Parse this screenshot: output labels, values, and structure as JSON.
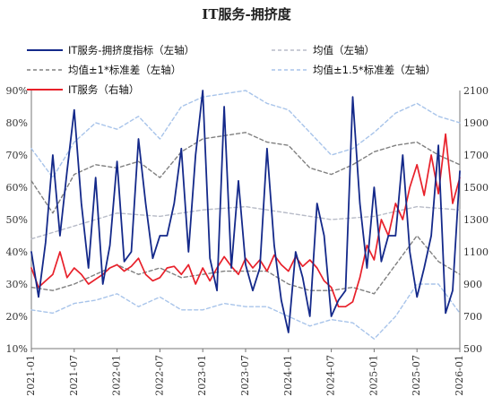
{
  "chart_data": {
    "type": "line",
    "title": "IT服务-拥挤度",
    "x_ticks": [
      "2021-01",
      "2021-07",
      "2022-01",
      "2022-07",
      "2023-01",
      "2023-07",
      "2024-01",
      "2024-07",
      "2025-01",
      "2025-07",
      "2026-01"
    ],
    "left_axis": {
      "ylim": [
        10,
        90
      ],
      "tick_labels": [
        "10%",
        "20%",
        "30%",
        "40%",
        "50%",
        "60%",
        "70%",
        "80%",
        "90%"
      ]
    },
    "right_axis": {
      "ylim": [
        500,
        2100
      ],
      "tick_labels": [
        "500",
        "700",
        "900",
        "1100",
        "1300",
        "1500",
        "1700",
        "1900",
        "2100"
      ]
    },
    "legend": [
      {
        "label": "IT服务-拥挤度指标（左轴）",
        "color": "#14298a",
        "style": "solid"
      },
      {
        "label": "均值（左轴）",
        "color": "#b8bcc8",
        "style": "dashed"
      },
      {
        "label": "均值±1*标准差（左轴）",
        "color": "#808080",
        "style": "dashed"
      },
      {
        "label": "均值±1.5*标准差（左轴）",
        "color": "#a8c4ea",
        "style": "dashed"
      },
      {
        "label": "IT服务（右轴）",
        "color": "#e8202a",
        "style": "solid"
      }
    ],
    "series": [
      {
        "name": "IT服务-拥挤度指标（左轴）",
        "axis": "left",
        "color": "#14298a",
        "x": [
          "2021-01",
          "2021-02",
          "2021-03",
          "2021-04",
          "2021-05",
          "2021-06",
          "2021-07",
          "2021-08",
          "2021-09",
          "2021-10",
          "2021-11",
          "2021-12",
          "2022-01",
          "2022-02",
          "2022-03",
          "2022-04",
          "2022-05",
          "2022-06",
          "2022-07",
          "2022-08",
          "2022-09",
          "2022-10",
          "2022-11",
          "2022-12",
          "2023-01",
          "2023-02",
          "2023-03",
          "2023-04",
          "2023-05",
          "2023-06",
          "2023-07",
          "2023-08",
          "2023-09",
          "2023-10",
          "2023-11",
          "2023-12",
          "2024-01",
          "2024-02",
          "2024-03",
          "2024-04",
          "2024-05",
          "2024-06",
          "2024-07",
          "2024-08",
          "2024-09",
          "2024-10",
          "2024-11",
          "2024-12",
          "2025-01",
          "2025-02",
          "2025-03",
          "2025-04",
          "2025-05",
          "2025-06",
          "2025-07",
          "2025-08",
          "2025-09",
          "2025-10",
          "2025-11",
          "2025-12",
          "2026-01"
        ],
        "y": [
          40,
          26,
          43,
          70,
          45,
          65,
          84,
          55,
          35,
          63,
          30,
          42,
          68,
          37,
          40,
          75,
          55,
          38,
          45,
          45,
          55,
          72,
          40,
          70,
          90,
          38,
          28,
          85,
          35,
          62,
          36,
          28,
          35,
          72,
          42,
          25,
          15,
          40,
          32,
          20,
          55,
          45,
          20,
          25,
          28,
          88,
          55,
          35,
          60,
          37,
          45,
          45,
          70,
          40,
          26,
          35,
          45,
          73,
          21,
          28,
          65
        ]
      },
      {
        "name": "均值（左轴）",
        "axis": "left",
        "color": "#b8bcc8",
        "x": [
          "2021-01",
          "2021-07",
          "2022-01",
          "2022-07",
          "2023-01",
          "2023-07",
          "2024-01",
          "2024-07",
          "2025-01",
          "2025-07",
          "2026-01"
        ],
        "y": [
          44,
          48,
          52,
          51,
          53,
          54,
          52,
          50,
          51,
          54,
          53
        ]
      },
      {
        "name": "均值+1*标准差（左轴）",
        "axis": "left",
        "color": "#808080",
        "x": [
          "2021-01",
          "2021-04",
          "2021-07",
          "2021-10",
          "2022-01",
          "2022-04",
          "2022-07",
          "2022-10",
          "2023-01",
          "2023-04",
          "2023-07",
          "2023-10",
          "2024-01",
          "2024-04",
          "2024-07",
          "2024-10",
          "2025-01",
          "2025-04",
          "2025-07",
          "2025-10",
          "2026-01"
        ],
        "y": [
          62,
          52,
          64,
          67,
          66,
          68,
          63,
          71,
          75,
          76,
          77,
          74,
          73,
          66,
          64,
          67,
          71,
          73,
          74,
          70,
          67
        ]
      },
      {
        "name": "均值-1*标准差（左轴）",
        "axis": "left",
        "color": "#808080",
        "x": [
          "2021-01",
          "2021-04",
          "2021-07",
          "2021-10",
          "2022-01",
          "2022-04",
          "2022-07",
          "2022-10",
          "2023-01",
          "2023-04",
          "2023-07",
          "2023-10",
          "2024-01",
          "2024-04",
          "2024-07",
          "2024-10",
          "2025-01",
          "2025-04",
          "2025-07",
          "2025-10",
          "2026-01"
        ],
        "y": [
          29,
          28,
          30,
          33,
          36,
          33,
          35,
          32,
          33,
          34,
          34,
          34,
          30,
          28,
          28,
          29,
          27,
          36,
          45,
          37,
          33
        ]
      },
      {
        "name": "均值+1.5*标准差（左轴）",
        "axis": "left",
        "color": "#a8c4ea",
        "x": [
          "2021-01",
          "2021-04",
          "2021-07",
          "2021-10",
          "2022-01",
          "2022-04",
          "2022-07",
          "2022-10",
          "2023-01",
          "2023-04",
          "2023-07",
          "2023-10",
          "2024-01",
          "2024-04",
          "2024-07",
          "2024-10",
          "2025-01",
          "2025-04",
          "2025-07",
          "2025-10",
          "2026-01"
        ],
        "y": [
          72,
          63,
          74,
          80,
          78,
          82,
          75,
          85,
          88,
          89,
          90,
          86,
          84,
          77,
          70,
          72,
          77,
          83,
          86,
          82,
          80
        ]
      },
      {
        "name": "均值-1.5*标准差（左轴）",
        "axis": "left",
        "color": "#a8c4ea",
        "x": [
          "2021-01",
          "2021-04",
          "2021-07",
          "2021-10",
          "2022-01",
          "2022-04",
          "2022-07",
          "2022-10",
          "2023-01",
          "2023-04",
          "2023-07",
          "2023-10",
          "2024-01",
          "2024-04",
          "2024-07",
          "2024-10",
          "2025-01",
          "2025-04",
          "2025-07",
          "2025-10",
          "2026-01"
        ],
        "y": [
          22,
          21,
          24,
          25,
          27,
          23,
          26,
          22,
          22,
          24,
          23,
          23,
          20,
          17,
          19,
          18,
          13,
          20,
          30,
          30,
          21
        ]
      },
      {
        "name": "IT服务（右轴）",
        "axis": "right",
        "color": "#e8202a",
        "x": [
          "2021-01",
          "2021-02",
          "2021-03",
          "2021-04",
          "2021-05",
          "2021-06",
          "2021-07",
          "2021-08",
          "2021-09",
          "2021-10",
          "2021-11",
          "2021-12",
          "2022-01",
          "2022-02",
          "2022-03",
          "2022-04",
          "2022-05",
          "2022-06",
          "2022-07",
          "2022-08",
          "2022-09",
          "2022-10",
          "2022-11",
          "2022-12",
          "2023-01",
          "2023-02",
          "2023-03",
          "2023-04",
          "2023-05",
          "2023-06",
          "2023-07",
          "2023-08",
          "2023-09",
          "2023-10",
          "2023-11",
          "2023-12",
          "2024-01",
          "2024-02",
          "2024-03",
          "2024-04",
          "2024-05",
          "2024-06",
          "2024-07",
          "2024-08",
          "2024-09",
          "2024-10",
          "2024-11",
          "2024-12",
          "2025-01",
          "2025-02",
          "2025-03",
          "2025-04",
          "2025-05",
          "2025-06",
          "2025-07",
          "2025-08",
          "2025-09",
          "2025-10",
          "2025-11",
          "2025-12",
          "2026-01"
        ],
        "y": [
          1000,
          880,
          920,
          960,
          1100,
          940,
          1000,
          960,
          900,
          930,
          960,
          1000,
          1020,
          980,
          1010,
          1060,
          960,
          920,
          940,
          1000,
          1010,
          960,
          1020,
          900,
          1000,
          920,
          1000,
          1070,
          1010,
          960,
          1060,
          1000,
          1050,
          980,
          1080,
          1020,
          980,
          1070,
          1010,
          1050,
          1000,
          920,
          880,
          760,
          760,
          790,
          940,
          1140,
          1050,
          1300,
          1200,
          1400,
          1300,
          1500,
          1640,
          1450,
          1700,
          1460,
          1830,
          1400,
          1560
        ]
      }
    ]
  }
}
